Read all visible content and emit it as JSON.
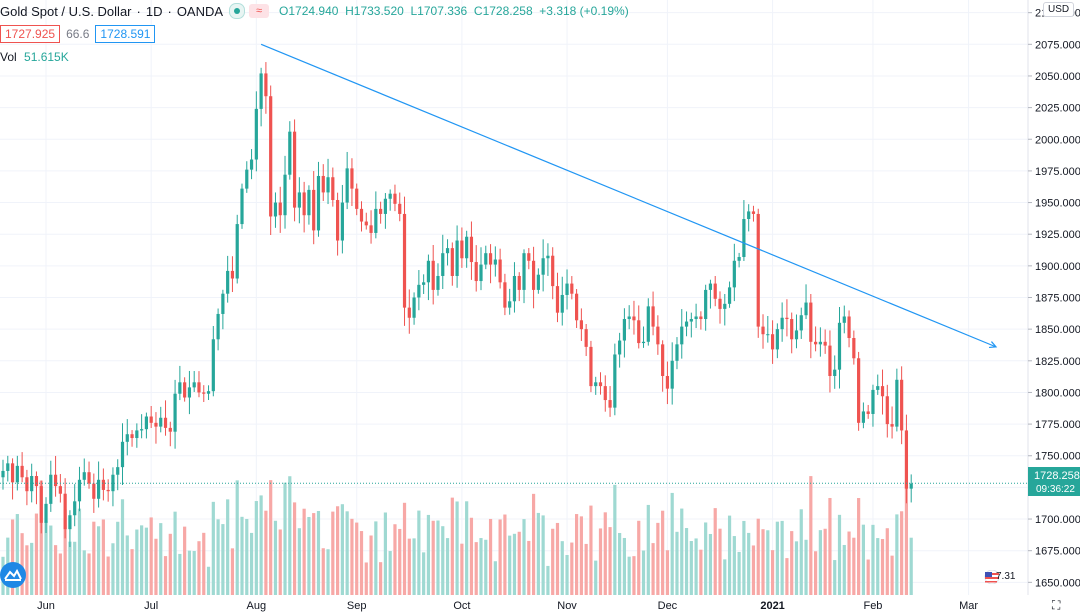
{
  "header": {
    "symbol": "Gold Spot / U.S. Dollar",
    "interval": "1D",
    "exchange": "OANDA",
    "open": "O1724.940",
    "high": "H1733.520",
    "low": "L1707.336",
    "close": "C1728.258",
    "change": "+3.318 (+0.19%)",
    "bid": "1727.925",
    "spread": "66.6",
    "ask": "1728.591",
    "vol_label": "Vol",
    "vol_value": "51.615K",
    "currency": "USD"
  },
  "colors": {
    "up": "#26a69a",
    "down": "#ef5350",
    "vol_up": "#9fd9d2",
    "vol_down": "#f7a8a6",
    "trendline": "#2196f3",
    "grid": "#f0f3fa",
    "axis_text": "#131722"
  },
  "current_price": {
    "value": 1728.258,
    "label": "1728.258",
    "countdown": "09:36:22"
  },
  "events": {
    "count_label": "7.31"
  },
  "chart_data": {
    "type": "candlestick",
    "ylim": [
      1640,
      2110
    ],
    "y_ticks": [
      1650,
      1675,
      1700,
      1725,
      1750,
      1775,
      1800,
      1825,
      1850,
      1875,
      1900,
      1925,
      1950,
      1975,
      2000,
      2025,
      2050,
      2075,
      2100
    ],
    "y_tick_labels": [
      "1650.000",
      "1675.000",
      "1700.000",
      "1725.000",
      "1750.000",
      "1775.000",
      "1800.000",
      "1825.000",
      "1850.000",
      "1875.000",
      "1900.000",
      "1925.000",
      "1950.000",
      "1975.000",
      "2000.000",
      "2025.000",
      "2050.000",
      "2075.000",
      "2100.000"
    ],
    "x_ticks": [
      {
        "label": "Jun",
        "index": 9
      },
      {
        "label": "Jul",
        "index": 31
      },
      {
        "label": "Aug",
        "index": 53
      },
      {
        "label": "Sep",
        "index": 74
      },
      {
        "label": "Oct",
        "index": 96
      },
      {
        "label": "Nov",
        "index": 118
      },
      {
        "label": "Dec",
        "index": 139
      },
      {
        "label": "2021",
        "index": 161
      },
      {
        "label": "Feb",
        "index": 182
      },
      {
        "label": "Mar",
        "index": 202
      }
    ],
    "closes": [
      1738,
      1744,
      1729,
      1742,
      1733,
      1722,
      1734,
      1726,
      1697,
      1712,
      1735,
      1726,
      1720,
      1692,
      1703,
      1714,
      1731,
      1737,
      1728,
      1716,
      1731,
      1723,
      1722,
      1735,
      1741,
      1761,
      1767,
      1764,
      1770,
      1771,
      1781,
      1776,
      1773,
      1780,
      1772,
      1769,
      1799,
      1808,
      1796,
      1804,
      1808,
      1800,
      1799,
      1801,
      1842,
      1862,
      1878,
      1896,
      1890,
      1933,
      1961,
      1976,
      1984,
      2024,
      2052,
      2034,
      1939,
      1950,
      1940,
      1972,
      2006,
      1946,
      1958,
      1940,
      1960,
      1928,
      1971,
      1958,
      1970,
      1952,
      1920,
      1950,
      1977,
      1961,
      1945,
      1935,
      1932,
      1926,
      1945,
      1941,
      1953,
      1957,
      1949,
      1941,
      1867,
      1859,
      1875,
      1885,
      1887,
      1904,
      1881,
      1892,
      1910,
      1914,
      1892,
      1920,
      1906,
      1923,
      1903,
      1888,
      1901,
      1910,
      1901,
      1905,
      1887,
      1867,
      1872,
      1892,
      1881,
      1910,
      1904,
      1881,
      1893,
      1906,
      1908,
      1884,
      1863,
      1877,
      1886,
      1878,
      1857,
      1850,
      1836,
      1805,
      1808,
      1805,
      1794,
      1788,
      1830,
      1841,
      1858,
      1860,
      1857,
      1839,
      1840,
      1868,
      1852,
      1838,
      1813,
      1803,
      1825,
      1838,
      1852,
      1856,
      1858,
      1860,
      1858,
      1881,
      1886,
      1874,
      1866,
      1870,
      1883,
      1904,
      1907,
      1937,
      1943,
      1941,
      1852,
      1846,
      1846,
      1834,
      1850,
      1859,
      1858,
      1842,
      1849,
      1861,
      1871,
      1840,
      1838,
      1840,
      1837,
      1813,
      1818,
      1855,
      1860,
      1843,
      1827,
      1776,
      1785,
      1783,
      1802,
      1805,
      1797,
      1775,
      1773,
      1810,
      1770,
      1724,
      1728
    ]
  }
}
